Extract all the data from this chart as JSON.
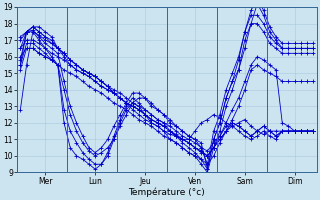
{
  "title": "Température (°c)",
  "bg_color": "#cce4f0",
  "plot_bg_color": "#cce4f0",
  "grid_color": "#aac8dc",
  "line_color": "#0000cc",
  "ylim": [
    9,
    19
  ],
  "yticks": [
    9,
    10,
    11,
    12,
    13,
    14,
    15,
    16,
    17,
    18,
    19
  ],
  "day_labels": [
    "Mer",
    "Lun",
    "Jeu",
    "Ven",
    "Sam",
    "Dim"
  ],
  "day_positions": [
    0,
    8,
    16,
    24,
    32,
    40
  ],
  "n_points": 48,
  "lines": [
    [
      12.8,
      15.5,
      17.5,
      17.3,
      17.0,
      16.8,
      16.5,
      16.2,
      15.8,
      15.5,
      15.2,
      15.0,
      14.8,
      14.5,
      14.2,
      13.8,
      13.5,
      13.2,
      13.0,
      12.8,
      12.5,
      12.2,
      12.0,
      11.8,
      11.5,
      11.3,
      11.0,
      11.0,
      11.5,
      12.0,
      12.2,
      12.5,
      12.3,
      12.0,
      11.8,
      12.0,
      12.2,
      11.8,
      11.5,
      11.3,
      11.5,
      11.5,
      11.5,
      11.5,
      11.5,
      11.5,
      11.5,
      11.5
    ],
    [
      16.5,
      17.5,
      17.8,
      17.5,
      17.2,
      17.0,
      16.5,
      16.0,
      15.5,
      15.2,
      15.0,
      14.8,
      14.5,
      14.2,
      14.0,
      13.8,
      13.5,
      13.2,
      12.8,
      12.5,
      12.2,
      12.0,
      11.8,
      11.5,
      11.3,
      11.2,
      11.0,
      10.8,
      10.5,
      10.3,
      10.0,
      10.5,
      11.0,
      11.5,
      11.8,
      11.5,
      11.2,
      11.0,
      11.2,
      11.5,
      11.2,
      11.0,
      11.5,
      11.5,
      11.5,
      11.5,
      11.5,
      11.5
    ],
    [
      17.0,
      17.5,
      17.8,
      17.8,
      17.5,
      17.2,
      16.5,
      16.2,
      15.8,
      15.5,
      15.2,
      15.0,
      14.8,
      14.5,
      14.2,
      14.0,
      13.8,
      13.5,
      13.2,
      13.0,
      12.8,
      12.5,
      12.2,
      12.0,
      11.8,
      11.5,
      11.2,
      11.0,
      10.8,
      10.5,
      10.3,
      10.8,
      11.2,
      11.8,
      12.0,
      11.8,
      11.5,
      11.2,
      11.5,
      11.8,
      11.5,
      11.2,
      11.5,
      11.5,
      11.5,
      11.5,
      11.5,
      11.5
    ],
    [
      17.2,
      17.5,
      17.8,
      17.5,
      17.2,
      16.8,
      16.5,
      16.2,
      15.8,
      15.5,
      15.2,
      15.0,
      14.8,
      14.5,
      14.2,
      13.8,
      13.5,
      13.2,
      13.0,
      12.8,
      12.5,
      12.2,
      12.0,
      11.8,
      11.5,
      11.2,
      11.0,
      10.8,
      10.5,
      10.3,
      10.0,
      10.5,
      11.0,
      11.5,
      12.0,
      11.8,
      11.5,
      11.2,
      11.5,
      11.8,
      11.5,
      11.2,
      11.5,
      11.5,
      11.5,
      11.5,
      11.5,
      11.5
    ],
    [
      15.5,
      17.5,
      17.5,
      17.0,
      16.5,
      16.0,
      15.5,
      14.0,
      12.5,
      11.5,
      10.8,
      10.3,
      10.0,
      10.2,
      10.5,
      11.0,
      11.8,
      12.5,
      13.2,
      13.5,
      13.5,
      13.2,
      12.8,
      12.5,
      12.2,
      11.8,
      11.5,
      11.2,
      11.0,
      10.8,
      9.2,
      11.0,
      12.0,
      13.5,
      14.5,
      15.2,
      16.5,
      18.0,
      19.2,
      18.5,
      17.5,
      17.0,
      16.5,
      16.5,
      16.5,
      16.5,
      16.5,
      16.5
    ],
    [
      15.8,
      17.5,
      17.6,
      17.2,
      16.8,
      16.5,
      16.2,
      14.5,
      13.0,
      12.0,
      11.2,
      10.5,
      10.2,
      10.5,
      11.0,
      11.8,
      12.5,
      13.2,
      13.8,
      13.8,
      13.5,
      13.0,
      12.8,
      12.5,
      12.0,
      11.8,
      11.5,
      11.2,
      11.0,
      10.5,
      9.5,
      11.5,
      12.5,
      14.0,
      15.0,
      16.0,
      17.5,
      18.8,
      19.5,
      18.8,
      17.8,
      17.2,
      16.8,
      16.8,
      16.8,
      16.8,
      16.8,
      16.8
    ],
    [
      15.5,
      16.8,
      16.8,
      16.5,
      16.2,
      15.8,
      15.5,
      12.0,
      10.5,
      10.0,
      9.8,
      9.5,
      9.2,
      9.5,
      10.0,
      11.0,
      12.0,
      12.8,
      13.2,
      13.0,
      12.5,
      12.0,
      11.8,
      11.5,
      11.0,
      10.8,
      10.5,
      10.2,
      10.0,
      9.5,
      9.0,
      10.5,
      11.5,
      13.0,
      14.0,
      15.2,
      17.0,
      18.0,
      18.0,
      17.5,
      16.8,
      16.5,
      16.2,
      16.2,
      16.2,
      16.2,
      16.2,
      16.2
    ],
    [
      15.2,
      16.5,
      16.5,
      16.2,
      16.0,
      15.8,
      15.5,
      12.8,
      11.5,
      10.8,
      10.2,
      9.8,
      9.5,
      9.5,
      10.2,
      11.2,
      12.2,
      13.0,
      13.5,
      13.2,
      12.8,
      12.5,
      12.2,
      12.0,
      11.5,
      11.2,
      10.8,
      10.5,
      10.2,
      9.8,
      9.2,
      11.0,
      12.0,
      13.5,
      14.5,
      15.8,
      17.5,
      18.5,
      18.5,
      18.0,
      17.2,
      16.8,
      16.5,
      16.5,
      16.5,
      16.5,
      16.5,
      16.5
    ],
    [
      16.0,
      16.5,
      16.5,
      16.2,
      16.0,
      15.8,
      15.5,
      15.2,
      15.0,
      14.8,
      14.5,
      14.2,
      14.0,
      13.8,
      13.5,
      13.2,
      13.0,
      12.8,
      12.5,
      12.2,
      12.0,
      11.8,
      11.5,
      11.2,
      11.0,
      10.8,
      10.5,
      10.2,
      10.0,
      9.8,
      9.5,
      10.0,
      10.8,
      11.5,
      12.2,
      13.0,
      14.0,
      15.2,
      15.5,
      15.2,
      15.0,
      14.8,
      14.5,
      14.5,
      14.5,
      14.5,
      14.5,
      14.5
    ],
    [
      16.5,
      17.0,
      17.0,
      16.8,
      16.5,
      16.2,
      16.0,
      15.8,
      15.5,
      15.2,
      15.0,
      14.8,
      14.5,
      14.2,
      14.0,
      13.8,
      13.5,
      13.2,
      13.0,
      12.8,
      12.5,
      12.2,
      12.0,
      11.8,
      11.5,
      11.2,
      11.0,
      10.8,
      10.5,
      10.2,
      10.0,
      10.5,
      11.2,
      12.0,
      12.8,
      13.5,
      14.5,
      15.5,
      16.0,
      15.8,
      15.5,
      15.2,
      12.0,
      11.8,
      11.5,
      11.5,
      11.5,
      11.5
    ]
  ]
}
